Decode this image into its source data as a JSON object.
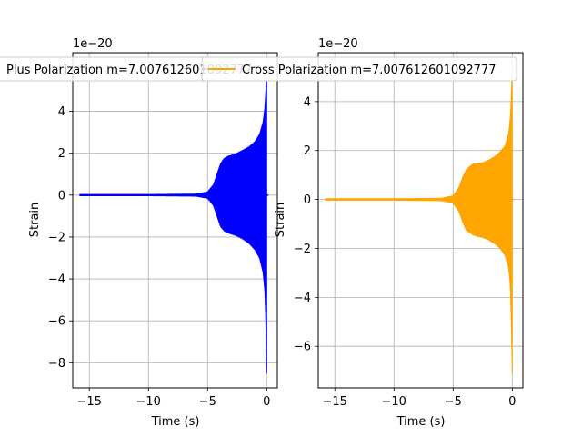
{
  "chart_data": [
    {
      "type": "line",
      "title": "",
      "xlabel": "Time (s)",
      "ylabel": "Strain",
      "offset_text": "1e−20",
      "xlim": [
        -16.4,
        0.9
      ],
      "ylim": [
        -9.2,
        6.8
      ],
      "xticks": [
        -15,
        -10,
        -5,
        0
      ],
      "xtick_labels": [
        "−15",
        "−10",
        "−5",
        "0"
      ],
      "yticks": [
        -8,
        -6,
        -4,
        -2,
        0,
        2,
        4
      ],
      "ytick_labels": [
        "−8",
        "−6",
        "−4",
        "−2",
        "0",
        "2",
        "4"
      ],
      "grid": true,
      "legend_position": "upper-right",
      "series": [
        {
          "name": "Plus Polarization m=7.007612601092777",
          "color": "#0000ff",
          "envelope": {
            "time": [
              -15.8,
              -10,
              -6,
              -5,
              -4.5,
              -4.2,
              -3.9,
              -3.6,
              -3.3,
              -3.0,
              -2.5,
              -2.0,
              -1.5,
              -1.0,
              -0.6,
              -0.3,
              -0.15,
              -0.05,
              0.0
            ],
            "upper": [
              0.03,
              0.03,
              0.05,
              0.15,
              0.5,
              1.0,
              1.5,
              1.75,
              1.85,
              1.9,
              2.0,
              2.15,
              2.3,
              2.55,
              2.9,
              3.5,
              4.2,
              5.2,
              5.8
            ],
            "lower": [
              -0.03,
              -0.03,
              -0.05,
              -0.15,
              -0.5,
              -1.0,
              -1.5,
              -1.7,
              -1.8,
              -1.85,
              -1.95,
              -2.1,
              -2.3,
              -2.6,
              -3.0,
              -3.7,
              -4.6,
              -6.5,
              -8.5
            ]
          }
        },
        {
          "name": "Cross Polarization m=7.007612601092777",
          "color": "#ffa500",
          "envelope": {
            "time": [
              -15.8,
              -10,
              -6,
              -5,
              -4.5,
              -4.2,
              -3.9,
              -3.6,
              -3.3,
              -3.0,
              -2.5,
              -2.0,
              -1.5,
              -1.0,
              -0.6,
              -0.3,
              -0.15,
              -0.05,
              0.0
            ],
            "upper": [
              0.03,
              0.03,
              0.05,
              0.15,
              0.5,
              0.9,
              1.2,
              1.35,
              1.45,
              1.45,
              1.5,
              1.6,
              1.75,
              1.95,
              2.2,
              2.7,
              3.4,
              4.6,
              5.3
            ],
            "lower": [
              -0.03,
              -0.03,
              -0.05,
              -0.15,
              -0.5,
              -0.9,
              -1.25,
              -1.35,
              -1.45,
              -1.5,
              -1.55,
              -1.65,
              -1.8,
              -2.0,
              -2.3,
              -2.8,
              -3.6,
              -5.6,
              -7.1
            ]
          }
        }
      ]
    },
    {
      "type": "line",
      "title": "",
      "xlabel": "Time (s)",
      "ylabel": "Strain",
      "offset_text": "1e−20",
      "xlim": [
        -16.4,
        0.9
      ],
      "ylim": [
        -7.7,
        6.0
      ],
      "xticks": [
        -15,
        -10,
        -5,
        0
      ],
      "xtick_labels": [
        "−15",
        "−10",
        "−5",
        "0"
      ],
      "yticks": [
        -6,
        -4,
        -2,
        0,
        2,
        4
      ],
      "ytick_labels": [
        "−6",
        "−4",
        "−2",
        "0",
        "2",
        "4"
      ],
      "grid": true,
      "legend_position": "upper-right",
      "series_ref": 1
    }
  ],
  "panels": [
    {
      "xlabel": "Time (s)",
      "ylabel": "Strain",
      "offset_text": "1e−20",
      "legend_label": "Plus Polarization m=7.007612601092777"
    },
    {
      "xlabel": "Time (s)",
      "ylabel": "Strain",
      "offset_text": "1e−20",
      "legend_label": "Cross Polarization m=7.007612601092777"
    }
  ]
}
